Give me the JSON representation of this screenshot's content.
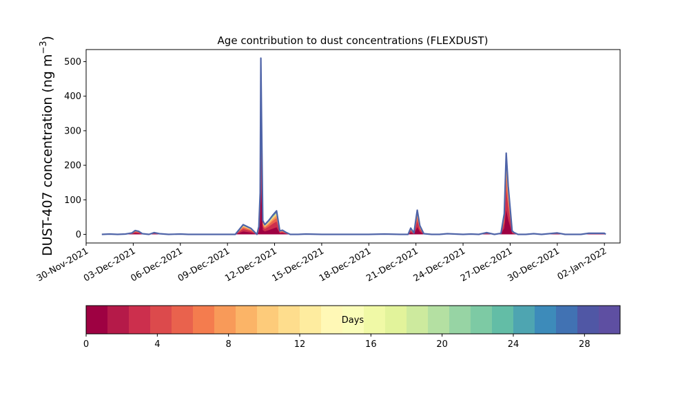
{
  "chart_data": {
    "type": "area",
    "title": "Age contribution to dust concentrations (FLEXDUST)",
    "ylabel": "DUST-407 concentration (ng m",
    "ylabel_unit_superscript": "−3",
    "ylabel_close": ")",
    "ylim": [
      -25,
      535
    ],
    "yticks": [
      0,
      100,
      200,
      300,
      400,
      500
    ],
    "xlim": [
      "2021-11-30",
      "2022-01-03"
    ],
    "xtick_dates": [
      "2021-11-30",
      "2021-12-03",
      "2021-12-06",
      "2021-12-09",
      "2021-12-12",
      "2021-12-15",
      "2021-12-18",
      "2021-12-21",
      "2021-12-24",
      "2021-12-27",
      "2021-12-30",
      "2022-01-02"
    ],
    "xtick_labels": [
      "30-Nov-2021",
      "03-Dec-2021",
      "06-Dec-2021",
      "09-Dec-2021",
      "12-Dec-2021",
      "15-Dec-2021",
      "18-Dec-2021",
      "21-Dec-2021",
      "24-Dec-2021",
      "27-Dec-2021",
      "30-Dec-2021",
      "02-Jan-2022"
    ],
    "grid": false,
    "total_concentration": {
      "x": [
        "2021-12-01T00:00",
        "2021-12-01T12:00",
        "2021-12-02T00:00",
        "2021-12-02T12:00",
        "2021-12-02T22:00",
        "2021-12-03T03:00",
        "2021-12-03T08:00",
        "2021-12-03T14:00",
        "2021-12-04T00:00",
        "2021-12-04T08:00",
        "2021-12-04T16:00",
        "2021-12-05T06:00",
        "2021-12-06T00:00",
        "2021-12-06T12:00",
        "2021-12-07T00:00",
        "2021-12-08T00:00",
        "2021-12-09T00:00",
        "2021-12-09T06:00",
        "2021-12-09T12:00",
        "2021-12-10T00:00",
        "2021-12-10T12:00",
        "2021-12-10T21:00",
        "2021-12-11T00:00",
        "2021-12-11T02:00",
        "2021-12-11T03:00",
        "2021-12-11T04:00",
        "2021-12-11T06:00",
        "2021-12-11T09:00",
        "2021-12-11T15:00",
        "2021-12-11T21:00",
        "2021-12-12T03:00",
        "2021-12-12T08:00",
        "2021-12-12T12:00",
        "2021-12-12T18:00",
        "2021-12-13T00:00",
        "2021-12-13T06:00",
        "2021-12-13T12:00",
        "2021-12-14T00:00",
        "2021-12-15T00:00",
        "2021-12-16T00:00",
        "2021-12-17T00:00",
        "2021-12-18T00:00",
        "2021-12-19T00:00",
        "2021-12-20T00:00",
        "2021-12-20T12:00",
        "2021-12-20T16:00",
        "2021-12-20T21:00",
        "2021-12-21T02:00",
        "2021-12-21T06:00",
        "2021-12-21T12:00",
        "2021-12-22T00:00",
        "2021-12-22T12:00",
        "2021-12-23T00:00",
        "2021-12-24T00:00",
        "2021-12-24T12:00",
        "2021-12-25T00:00",
        "2021-12-25T12:00",
        "2021-12-26T00:00",
        "2021-12-26T10:00",
        "2021-12-26T15:00",
        "2021-12-26T18:00",
        "2021-12-26T21:00",
        "2021-12-27T03:00",
        "2021-12-27T06:00",
        "2021-12-27T12:00",
        "2021-12-28T00:00",
        "2021-12-28T12:00",
        "2021-12-29T00:00",
        "2021-12-30T00:00",
        "2021-12-30T12:00",
        "2021-12-31T00:00",
        "2021-12-31T12:00",
        "2022-01-01T00:00",
        "2022-01-01T12:00",
        "2022-01-02T00:00",
        "2022-01-02T02:00"
      ],
      "y": [
        0,
        1,
        0,
        1,
        4,
        11,
        9,
        2,
        0,
        5,
        2,
        0,
        1,
        0,
        0,
        0,
        0,
        0,
        0,
        28,
        17,
        0,
        22,
        120,
        510,
        350,
        40,
        28,
        40,
        55,
        68,
        10,
        12,
        5,
        0,
        0,
        0,
        1,
        0,
        0,
        0,
        0,
        1,
        0,
        0,
        18,
        4,
        70,
        25,
        2,
        0,
        0,
        2,
        0,
        1,
        0,
        5,
        0,
        3,
        60,
        235,
        140,
        10,
        5,
        0,
        0,
        2,
        0,
        4,
        0,
        0,
        0,
        3,
        3,
        3,
        0
      ]
    },
    "colorbar": {
      "label": "Days",
      "range": [
        0,
        30
      ],
      "ticks": [
        0,
        4,
        8,
        12,
        16,
        20,
        24,
        28
      ],
      "colors": [
        "#9e0142",
        "#b51a49",
        "#cc2f4d",
        "#dc4a4c",
        "#e9624d",
        "#f47c4e",
        "#f89a59",
        "#fbb467",
        "#fdcb7a",
        "#fedd8d",
        "#feec9f",
        "#fff8b6",
        "#fafdb9",
        "#f0f9a6",
        "#e2f39b",
        "#cdea9e",
        "#b4e0a2",
        "#97d4a4",
        "#7dcaa4",
        "#63bda6",
        "#4ea5b1",
        "#3d8bba",
        "#4172b3",
        "#5057a5",
        "#5e4fa2"
      ]
    },
    "line_color": "#4f64a8"
  }
}
